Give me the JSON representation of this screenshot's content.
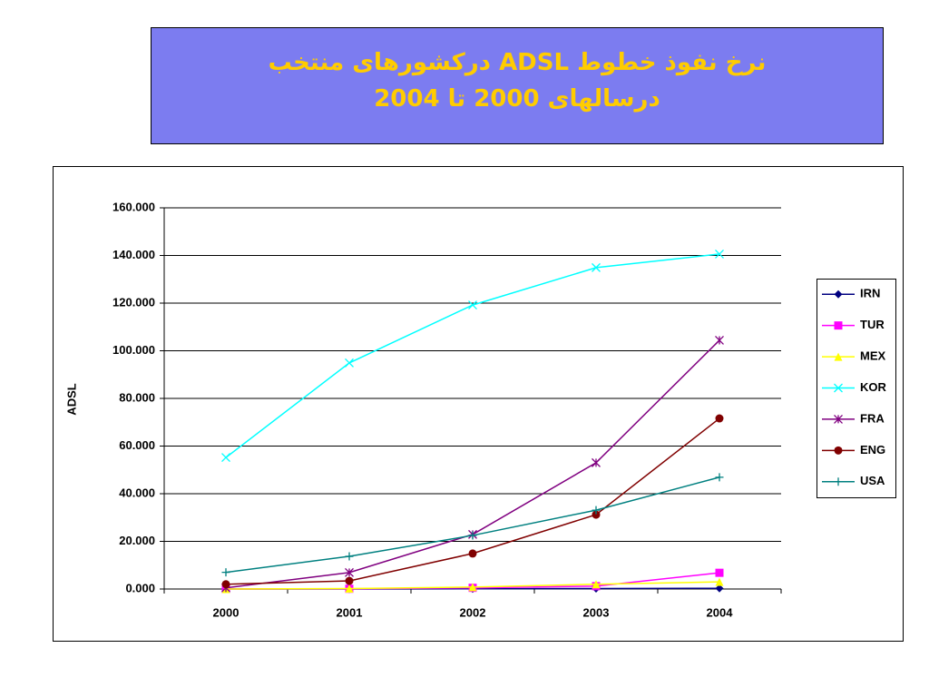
{
  "chart_data": {
    "type": "line",
    "title": [
      "نرخ نفوذ خطوط ADSL درکشورهای منتخب",
      "درسالهای 2000 تا 2004"
    ],
    "y_label": "ADSL",
    "categories": [
      "2000",
      "2001",
      "2002",
      "2003",
      "2004"
    ],
    "series": [
      {
        "name": "IRN",
        "color": "#000080",
        "marker": "diamond",
        "values": [
          0,
          0,
          0.1,
          0.2,
          0.3
        ]
      },
      {
        "name": "TUR",
        "color": "#ff00ff",
        "marker": "square",
        "values": [
          0,
          0.1,
          0.5,
          1.2,
          6.8
        ]
      },
      {
        "name": "MEX",
        "color": "#ffff00",
        "marker": "triangle",
        "values": [
          0,
          0.2,
          0.8,
          2,
          3
        ]
      },
      {
        "name": "KOR",
        "color": "#00ffff",
        "marker": "x",
        "values": [
          55.2,
          94.9,
          119.2,
          134.9,
          140.6
        ]
      },
      {
        "name": "FRA",
        "color": "#800080",
        "marker": "star",
        "values": [
          0.5,
          6.9,
          22.9,
          53,
          104.4
        ]
      },
      {
        "name": "ENG",
        "color": "#800000",
        "marker": "circle",
        "values": [
          2,
          3.4,
          14.9,
          31.2,
          71.6
        ]
      },
      {
        "name": "USA",
        "color": "#008080",
        "marker": "plus",
        "values": [
          7,
          13.7,
          22.5,
          33.1,
          46.9
        ]
      }
    ],
    "ylim": [
      0,
      160
    ],
    "yticks": [
      {
        "value": 0,
        "label": "0.000"
      },
      {
        "value": 20,
        "label": "20.000"
      },
      {
        "value": 40,
        "label": "40.000"
      },
      {
        "value": 60,
        "label": "60.000"
      },
      {
        "value": 80,
        "label": "80.000"
      },
      {
        "value": 100,
        "label": "100.000"
      },
      {
        "value": 120,
        "label": "120.000"
      },
      {
        "value": 140,
        "label": "140.000"
      },
      {
        "value": 160,
        "label": "160.000"
      }
    ],
    "grid": true,
    "legend": "right"
  }
}
